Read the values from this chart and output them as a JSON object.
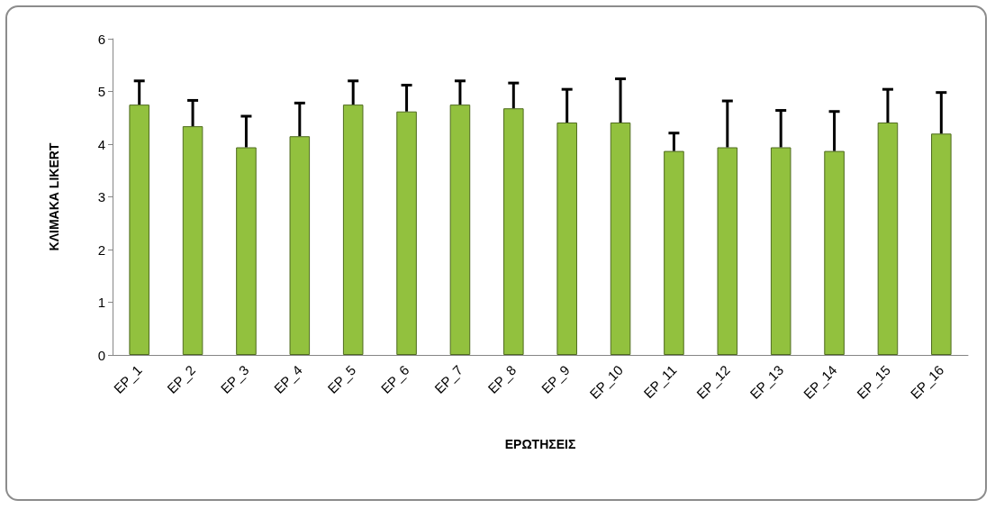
{
  "chart_data": {
    "type": "bar",
    "xlabel": "ΕΡΩΤΗΣΕΙΣ",
    "ylabel": "ΚΛΙΜΑΚΑ LIKERT",
    "categories": [
      "ΕΡ_1",
      "ΕΡ_2",
      "ΕΡ_3",
      "ΕΡ_4",
      "ΕΡ_5",
      "ΕΡ_6",
      "ΕΡ_7",
      "ΕΡ_8",
      "ΕΡ_9",
      "ΕΡ_10",
      "ΕΡ_11",
      "ΕΡ_12",
      "ΕΡ_13",
      "ΕΡ_14",
      "ΕΡ_15",
      "ΕΡ_16"
    ],
    "values": [
      4.75,
      4.34,
      3.94,
      4.15,
      4.75,
      4.62,
      4.75,
      4.68,
      4.41,
      4.41,
      3.87,
      3.94,
      3.94,
      3.87,
      4.41,
      4.2
    ],
    "errors": [
      [
        4.75,
        5.2
      ],
      [
        4.34,
        4.83
      ],
      [
        3.94,
        4.53
      ],
      [
        4.15,
        4.78
      ],
      [
        4.75,
        5.2
      ],
      [
        4.62,
        5.12
      ],
      [
        4.75,
        5.2
      ],
      [
        4.68,
        5.16
      ],
      [
        4.41,
        5.04
      ],
      [
        4.41,
        5.24
      ],
      [
        3.87,
        4.21
      ],
      [
        3.94,
        4.82
      ],
      [
        3.94,
        4.64
      ],
      [
        3.87,
        4.62
      ],
      [
        4.41,
        5.04
      ],
      [
        4.2,
        4.98
      ]
    ],
    "color": "#92c13e",
    "ylim": [
      0,
      6
    ],
    "yticks": [
      0,
      1,
      2,
      3,
      4,
      5,
      6
    ],
    "grid": false
  }
}
